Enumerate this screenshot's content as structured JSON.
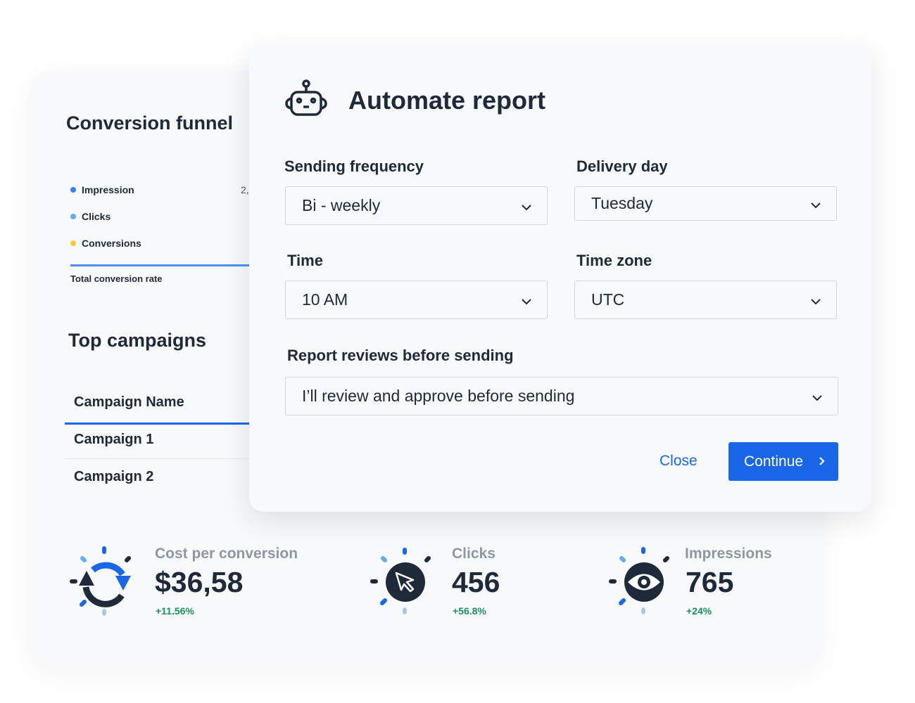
{
  "funnel": {
    "title": "Conversion funnel",
    "legend": [
      {
        "label": "Impression",
        "color": "#3d7cf2",
        "value": "2,"
      },
      {
        "label": "Clicks",
        "color": "#62aeef"
      },
      {
        "label": "Conversions",
        "color": "#fcc83b"
      }
    ],
    "total_label": "Total conversion rate"
  },
  "campaigns": {
    "title": "Top campaigns",
    "header": "Campaign Name",
    "rows": [
      "Campaign 1",
      "Campaign 2"
    ]
  },
  "stats": [
    {
      "label": "Cost per conversion",
      "value": "$36,58",
      "change": "+11.56%",
      "icon": "refresh-icon"
    },
    {
      "label": "Clicks",
      "value": "456",
      "change": "+56.8%",
      "icon": "cursor-icon"
    },
    {
      "label": "Impressions",
      "value": "765",
      "change": "+24%",
      "icon": "eye-icon"
    }
  ],
  "modal": {
    "title": "Automate report",
    "icon": "robot-icon",
    "frequency": {
      "label": "Sending frequency",
      "value": "Bi - weekly"
    },
    "day": {
      "label": "Delivery day",
      "value": "Tuesday"
    },
    "time": {
      "label": "Time",
      "value": "10 AM"
    },
    "timezone": {
      "label": "Time zone",
      "value": "UTC"
    },
    "review": {
      "label": "Report reviews before sending",
      "value": "I’ll review and approve before sending"
    },
    "close": "Close",
    "continue": "Continue"
  },
  "colors": {
    "accent": "#1a66e8",
    "text": "#1e2a3a",
    "positive": "#1a9060"
  }
}
